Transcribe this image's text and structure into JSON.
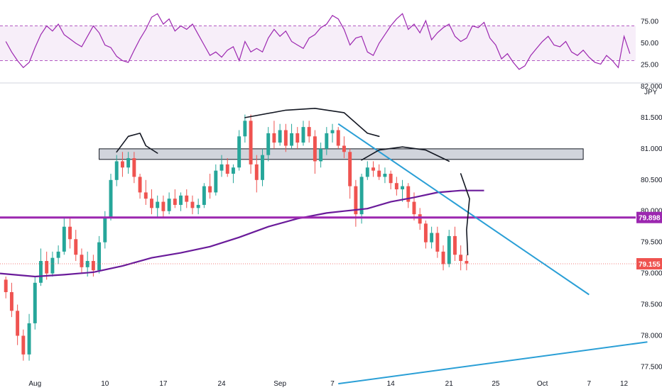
{
  "chart_data": [
    {
      "type": "line",
      "pane": "rsi",
      "y_ticks": [
        "75.00",
        "50.00",
        "25.00"
      ],
      "band": [
        30,
        70
      ],
      "ylim": [
        10,
        90
      ],
      "x_range": [
        -1,
        108
      ],
      "series": [
        {
          "color": "#9c27b0",
          "x": [
            0,
            1,
            2,
            3,
            4,
            5,
            6,
            7,
            8,
            9,
            10,
            11,
            12,
            13,
            14,
            15,
            16,
            17,
            18,
            19,
            20,
            21,
            22,
            23,
            24,
            25,
            26,
            27,
            28,
            29,
            30,
            31,
            32,
            33,
            34,
            35,
            36,
            37,
            38,
            39,
            40,
            41,
            42,
            43,
            44,
            45,
            46,
            47,
            48,
            49,
            50,
            51,
            52,
            53,
            54,
            55,
            56,
            57,
            58,
            59,
            60,
            61,
            62,
            63,
            64,
            65,
            66,
            67,
            68,
            69,
            70,
            71,
            72,
            73,
            74,
            75,
            76,
            77,
            78,
            79,
            80,
            81,
            82,
            83,
            84,
            85,
            86,
            87,
            88,
            89,
            90,
            91,
            92,
            93,
            94,
            95,
            96,
            97,
            98,
            99,
            100,
            101,
            102,
            103,
            104,
            105,
            106,
            107
          ],
          "values": [
            52,
            40,
            30,
            22,
            28,
            45,
            60,
            70,
            64,
            72,
            60,
            55,
            50,
            46,
            58,
            70,
            62,
            48,
            45,
            35,
            30,
            28,
            42,
            55,
            66,
            80,
            84,
            72,
            78,
            64,
            70,
            66,
            72,
            60,
            48,
            36,
            40,
            34,
            42,
            46,
            30,
            52,
            40,
            44,
            40,
            56,
            66,
            58,
            64,
            52,
            48,
            44,
            56,
            60,
            68,
            72,
            82,
            78,
            66,
            48,
            56,
            58,
            40,
            36,
            50,
            60,
            70,
            78,
            84,
            66,
            72,
            62,
            76,
            54,
            62,
            68,
            72,
            58,
            52,
            56,
            70,
            68,
            74,
            56,
            48,
            32,
            38,
            28,
            20,
            24,
            36,
            44,
            52,
            58,
            48,
            46,
            52,
            40,
            36,
            42,
            34,
            28,
            26,
            36,
            30,
            22,
            58,
            38
          ]
        }
      ]
    },
    {
      "type": "candlestick",
      "pane": "price",
      "symbol_unit": "JPY",
      "ylim": [
        77.3,
        82.0
      ],
      "x_range": [
        -1,
        108
      ],
      "x_tick_labels": [
        "Aug",
        "10",
        "17",
        "24",
        "Sep",
        "7",
        "14",
        "21",
        "25",
        "Oct",
        "7",
        "12"
      ],
      "x_tick_index": [
        5,
        17,
        27,
        37,
        47,
        56,
        66,
        76,
        84,
        92,
        100,
        106
      ],
      "y_ticks": [
        "82.000",
        "81.500",
        "81.000",
        "80.500",
        "80.000",
        "79.500",
        "79.000",
        "78.500",
        "78.000",
        "77.500"
      ],
      "candles": [
        [
          0,
          78.9,
          78.95,
          78.6,
          78.7
        ],
        [
          1,
          78.7,
          78.85,
          78.3,
          78.4
        ],
        [
          2,
          78.4,
          78.5,
          77.85,
          78.0
        ],
        [
          3,
          78.0,
          78.1,
          77.6,
          77.7
        ],
        [
          4,
          77.7,
          78.35,
          77.6,
          78.2
        ],
        [
          5,
          78.2,
          78.95,
          78.1,
          78.85
        ],
        [
          6,
          78.85,
          79.4,
          78.8,
          79.2
        ],
        [
          7,
          79.2,
          79.35,
          78.9,
          79.0
        ],
        [
          8,
          79.0,
          79.35,
          78.95,
          79.25
        ],
        [
          9,
          79.25,
          79.45,
          79.15,
          79.35
        ],
        [
          10,
          79.35,
          79.9,
          79.3,
          79.75
        ],
        [
          11,
          79.75,
          79.9,
          79.4,
          79.55
        ],
        [
          12,
          79.55,
          79.7,
          79.2,
          79.3
        ],
        [
          13,
          79.3,
          79.4,
          79.0,
          79.1
        ],
        [
          14,
          79.1,
          79.35,
          78.95,
          79.2
        ],
        [
          15,
          79.2,
          79.3,
          78.95,
          79.05
        ],
        [
          16,
          79.05,
          79.6,
          79.0,
          79.5
        ],
        [
          17,
          79.5,
          80.0,
          79.4,
          79.9
        ],
        [
          18,
          79.9,
          80.6,
          79.85,
          80.5
        ],
        [
          19,
          80.5,
          80.9,
          80.4,
          80.8
        ],
        [
          20,
          80.8,
          80.95,
          80.55,
          80.7
        ],
        [
          21,
          80.7,
          80.95,
          80.6,
          80.85
        ],
        [
          22,
          80.85,
          80.95,
          80.45,
          80.55
        ],
        [
          23,
          80.55,
          80.6,
          80.2,
          80.3
        ],
        [
          24,
          80.3,
          80.5,
          80.1,
          80.2
        ],
        [
          25,
          80.2,
          80.35,
          79.95,
          80.05
        ],
        [
          26,
          80.05,
          80.25,
          79.9,
          80.15
        ],
        [
          27,
          80.15,
          80.25,
          79.9,
          80.0
        ],
        [
          28,
          80.0,
          80.3,
          79.95,
          80.2
        ],
        [
          29,
          80.2,
          80.35,
          80.05,
          80.1
        ],
        [
          30,
          80.1,
          80.3,
          80.0,
          80.25
        ],
        [
          31,
          80.25,
          80.35,
          80.05,
          80.15
        ],
        [
          32,
          80.15,
          80.25,
          79.95,
          80.05
        ],
        [
          33,
          80.05,
          80.2,
          79.95,
          80.1
        ],
        [
          34,
          80.1,
          80.45,
          80.05,
          80.4
        ],
        [
          35,
          80.4,
          80.6,
          80.2,
          80.3
        ],
        [
          36,
          80.3,
          80.75,
          80.25,
          80.65
        ],
        [
          37,
          80.65,
          80.9,
          80.55,
          80.75
        ],
        [
          38,
          80.75,
          80.85,
          80.55,
          80.6
        ],
        [
          39,
          80.6,
          80.75,
          80.45,
          80.7
        ],
        [
          40,
          80.7,
          81.3,
          80.65,
          81.2
        ],
        [
          41,
          81.2,
          81.55,
          81.1,
          81.45
        ],
        [
          42,
          81.45,
          81.55,
          80.6,
          80.75
        ],
        [
          43,
          80.75,
          80.9,
          80.3,
          80.5
        ],
        [
          44,
          80.5,
          81.0,
          80.4,
          80.9
        ],
        [
          45,
          80.9,
          81.35,
          80.8,
          81.25
        ],
        [
          46,
          81.25,
          81.45,
          81.0,
          81.1
        ],
        [
          47,
          81.1,
          81.4,
          81.05,
          81.3
        ],
        [
          48,
          81.3,
          81.4,
          80.95,
          81.05
        ],
        [
          49,
          81.05,
          81.4,
          81.0,
          81.25
        ],
        [
          50,
          81.25,
          81.35,
          81.0,
          81.1
        ],
        [
          51,
          81.1,
          81.45,
          81.05,
          81.35
        ],
        [
          52,
          81.35,
          81.45,
          81.1,
          81.2
        ],
        [
          53,
          81.2,
          81.3,
          80.6,
          80.8
        ],
        [
          54,
          80.8,
          81.1,
          80.7,
          81.0
        ],
        [
          55,
          81.0,
          81.35,
          80.9,
          81.25
        ],
        [
          56,
          81.25,
          81.4,
          81.1,
          81.3
        ],
        [
          57,
          81.3,
          81.35,
          81.0,
          81.05
        ],
        [
          58,
          81.05,
          81.2,
          80.85,
          80.95
        ],
        [
          59,
          80.95,
          81.0,
          80.2,
          80.4
        ],
        [
          60,
          80.4,
          80.5,
          79.75,
          79.95
        ],
        [
          61,
          79.95,
          80.6,
          79.8,
          80.55
        ],
        [
          62,
          80.55,
          80.8,
          80.5,
          80.7
        ],
        [
          63,
          80.7,
          80.8,
          80.55,
          80.65
        ],
        [
          64,
          80.65,
          80.75,
          80.5,
          80.55
        ],
        [
          65,
          80.55,
          80.7,
          80.45,
          80.6
        ],
        [
          66,
          80.6,
          80.65,
          80.35,
          80.45
        ],
        [
          67,
          80.45,
          80.55,
          80.25,
          80.35
        ],
        [
          68,
          80.35,
          80.5,
          80.15,
          80.4
        ],
        [
          69,
          80.4,
          80.45,
          80.05,
          80.15
        ],
        [
          70,
          80.15,
          80.3,
          79.85,
          79.95
        ],
        [
          71,
          79.95,
          80.05,
          79.7,
          79.8
        ],
        [
          72,
          79.8,
          79.85,
          79.4,
          79.5
        ],
        [
          73,
          79.5,
          79.75,
          79.4,
          79.65
        ],
        [
          74,
          79.65,
          79.75,
          79.25,
          79.35
        ],
        [
          75,
          79.35,
          79.45,
          79.05,
          79.15
        ],
        [
          76,
          79.15,
          79.7,
          79.1,
          79.6
        ],
        [
          77,
          79.6,
          79.75,
          79.2,
          79.3
        ],
        [
          78,
          79.3,
          79.45,
          79.05,
          79.2
        ],
        [
          79,
          79.2,
          79.3,
          79.05,
          79.16
        ]
      ],
      "moving_average": {
        "color": "#6a1b9a",
        "x": [
          -1,
          5,
          10,
          15,
          20,
          25,
          30,
          35,
          40,
          45,
          50,
          55,
          58,
          62,
          66,
          70,
          74,
          78,
          82
        ],
        "values": [
          79.0,
          78.95,
          78.98,
          79.02,
          79.12,
          79.25,
          79.33,
          79.43,
          79.58,
          79.75,
          79.88,
          79.97,
          80.0,
          80.04,
          80.15,
          80.22,
          80.3,
          80.33,
          80.33
        ]
      },
      "horizontal_level": {
        "value": 79.898,
        "label": "79.898",
        "color": "#9c27b0"
      },
      "last_price": {
        "value": 79.155,
        "label": "79.155",
        "color": "#ef5350"
      },
      "resistance_zone": {
        "x": [
          16,
          99
        ],
        "y": [
          80.83,
          81.0
        ]
      },
      "trendlines": [
        {
          "color": "#2a9fd6",
          "x": [
            57,
            100
          ],
          "y": [
            81.4,
            78.66
          ]
        },
        {
          "color": "#2a9fd6",
          "x": [
            57,
            110
          ],
          "y": [
            77.23,
            77.9
          ]
        }
      ],
      "drawings": [
        {
          "x": [
            19,
            21,
            23,
            24,
            26
          ],
          "y": [
            80.95,
            81.2,
            81.25,
            81.05,
            80.93
          ]
        },
        {
          "x": [
            41,
            48,
            53,
            58,
            62,
            64
          ],
          "y": [
            81.5,
            81.62,
            81.65,
            81.58,
            81.25,
            81.2
          ]
        },
        {
          "x": [
            61,
            64,
            68,
            72,
            76
          ],
          "y": [
            80.82,
            80.98,
            81.03,
            80.98,
            80.8
          ]
        },
        {
          "x": [
            78,
            79.5,
            79,
            79.2
          ],
          "y": [
            80.6,
            80.2,
            79.7,
            79.3
          ]
        }
      ],
      "colors": {
        "up": "#26a69a",
        "down": "#ef5350"
      }
    }
  ]
}
